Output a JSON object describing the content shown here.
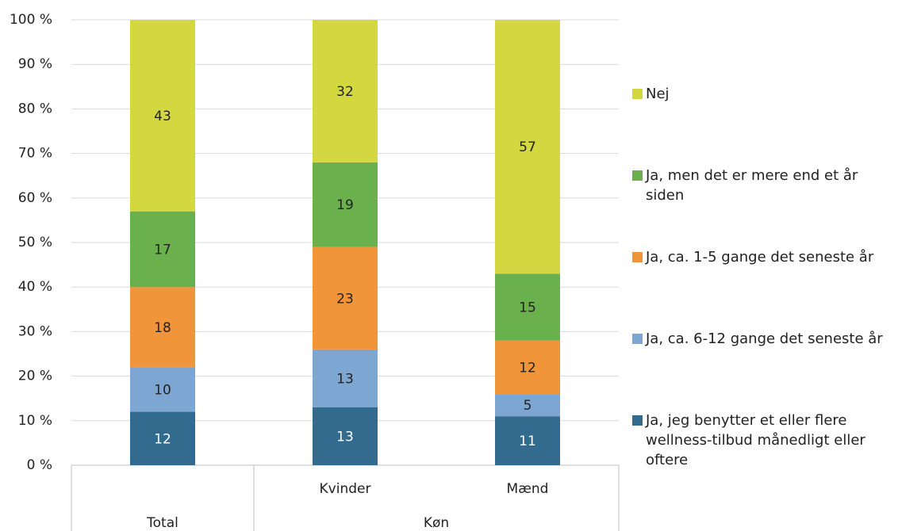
{
  "chart_data": {
    "type": "stacked_bar",
    "categories": [
      null,
      "Kvinder",
      "Mænd"
    ],
    "category_groups": [
      {
        "label": "Total",
        "span": 1
      },
      {
        "label": "Køn",
        "span": 2
      }
    ],
    "series": [
      {
        "name": "Ja, jeg benytter et eller flere wellness-tilbud månedligt eller oftere",
        "color": "#336b8f",
        "values": [
          12,
          13,
          11
        ]
      },
      {
        "name": "Ja, ca. 6-12 gange det seneste år",
        "color": "#7ea6d2",
        "values": [
          10,
          13,
          5
        ]
      },
      {
        "name": "Ja, ca. 1-5 gange det seneste år",
        "color": "#f0953a",
        "values": [
          18,
          23,
          12
        ]
      },
      {
        "name": "Ja, men det er mere end et år siden",
        "color": "#6ab04c",
        "values": [
          17,
          19,
          15
        ]
      },
      {
        "name": "Nej",
        "color": "#d4d840",
        "values": [
          43,
          32,
          57
        ]
      }
    ],
    "ylim": [
      0,
      100
    ],
    "yticks": [
      {
        "value": 0,
        "label": "0 %"
      },
      {
        "value": 10,
        "label": "10 %"
      },
      {
        "value": 20,
        "label": "20 %"
      },
      {
        "value": 30,
        "label": "30 %"
      },
      {
        "value": 40,
        "label": "40 %"
      },
      {
        "value": 50,
        "label": "50 %"
      },
      {
        "value": 60,
        "label": "60 %"
      },
      {
        "value": 70,
        "label": "70 %"
      },
      {
        "value": 80,
        "label": "80 %"
      },
      {
        "value": 90,
        "label": "90 %"
      },
      {
        "value": 100,
        "label": "100 %"
      }
    ],
    "grid": true,
    "legend": "right"
  }
}
